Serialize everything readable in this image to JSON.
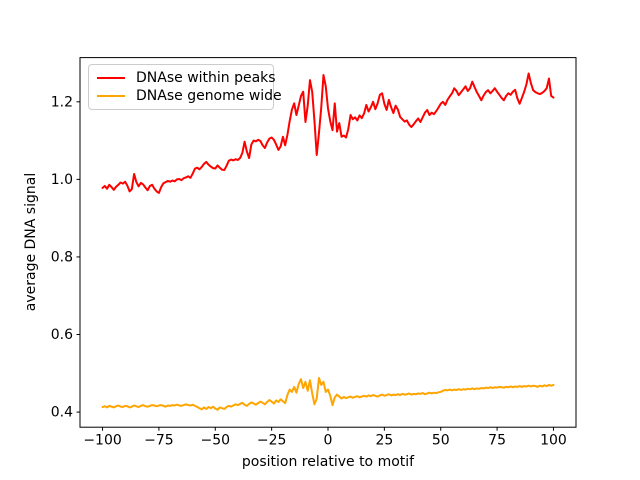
{
  "figure": {
    "background": "#ffffff"
  },
  "chart_data": {
    "type": "line",
    "title": "",
    "xlabel": "position relative to motif",
    "ylabel": "average DNA signal",
    "xlim": [
      -110,
      110
    ],
    "ylim": [
      0.361,
      1.314
    ],
    "grid": false,
    "x_ticks": [
      -100,
      -75,
      -50,
      -25,
      0,
      25,
      50,
      75,
      100
    ],
    "x_tick_labels": [
      "−100",
      "−75",
      "−50",
      "−25",
      "0",
      "25",
      "50",
      "75",
      "100"
    ],
    "y_ticks": [
      0.4,
      0.6,
      0.8,
      1.0,
      1.2
    ],
    "y_tick_labels": [
      "0.4",
      "0.6",
      "0.8",
      "1.0",
      "1.2"
    ],
    "legend": {
      "position": "upper left"
    },
    "x_start": -100,
    "x_step": 1,
    "series": [
      {
        "name": "DNAse within peaks",
        "color": "#ff0000",
        "values": [
          0.978,
          0.983,
          0.976,
          0.986,
          0.98,
          0.973,
          0.981,
          0.986,
          0.992,
          0.989,
          0.994,
          0.984,
          0.969,
          0.975,
          1.014,
          0.993,
          0.982,
          0.991,
          0.987,
          0.979,
          0.972,
          0.983,
          0.986,
          0.976,
          0.969,
          0.965,
          0.98,
          0.99,
          0.993,
          0.996,
          0.994,
          0.997,
          0.995,
          1.0,
          1.001,
          0.998,
          1.003,
          1.005,
          1.008,
          1.004,
          1.015,
          1.028,
          1.03,
          1.026,
          1.032,
          1.04,
          1.045,
          1.038,
          1.033,
          1.029,
          1.028,
          1.036,
          1.03,
          1.025,
          1.024,
          1.035,
          1.048,
          1.051,
          1.049,
          1.052,
          1.05,
          1.055,
          1.068,
          1.097,
          1.072,
          1.055,
          1.09,
          1.1,
          1.098,
          1.102,
          1.099,
          1.088,
          1.081,
          1.095,
          1.105,
          1.108,
          1.102,
          1.09,
          1.076,
          1.085,
          1.11,
          1.088,
          1.115,
          1.15,
          1.18,
          1.196,
          1.166,
          1.19,
          1.215,
          1.226,
          1.148,
          1.19,
          1.256,
          1.225,
          1.15,
          1.063,
          1.12,
          1.185,
          1.269,
          1.24,
          1.183,
          1.15,
          1.127,
          1.196,
          1.123,
          1.145,
          1.11,
          1.113,
          1.108,
          1.13,
          1.166,
          1.155,
          1.16,
          1.152,
          1.165,
          1.158,
          1.17,
          1.192,
          1.175,
          1.186,
          1.2,
          1.181,
          1.196,
          1.218,
          1.222,
          1.195,
          1.179,
          1.205,
          1.186,
          1.171,
          1.19,
          1.18,
          1.161,
          1.155,
          1.149,
          1.152,
          1.141,
          1.135,
          1.142,
          1.15,
          1.157,
          1.148,
          1.16,
          1.172,
          1.179,
          1.166,
          1.172,
          1.168,
          1.176,
          1.185,
          1.195,
          1.2,
          1.192,
          1.205,
          1.214,
          1.222,
          1.235,
          1.228,
          1.217,
          1.225,
          1.232,
          1.24,
          1.228,
          1.235,
          1.252,
          1.238,
          1.225,
          1.215,
          1.204,
          1.216,
          1.225,
          1.23,
          1.222,
          1.228,
          1.235,
          1.226,
          1.218,
          1.21,
          1.204,
          1.215,
          1.222,
          1.218,
          1.226,
          1.231,
          1.209,
          1.195,
          1.21,
          1.226,
          1.245,
          1.273,
          1.248,
          1.23,
          1.225,
          1.222,
          1.22,
          1.223,
          1.228,
          1.235,
          1.26,
          1.215,
          1.211
        ]
      },
      {
        "name": "DNAse genome wide",
        "color": "#ffa500",
        "values": [
          0.413,
          0.415,
          0.412,
          0.416,
          0.414,
          0.412,
          0.415,
          0.417,
          0.414,
          0.413,
          0.416,
          0.415,
          0.412,
          0.414,
          0.417,
          0.415,
          0.413,
          0.416,
          0.418,
          0.415,
          0.414,
          0.416,
          0.418,
          0.417,
          0.415,
          0.417,
          0.418,
          0.416,
          0.414,
          0.417,
          0.416,
          0.418,
          0.417,
          0.419,
          0.417,
          0.416,
          0.418,
          0.42,
          0.418,
          0.417,
          0.419,
          0.416,
          0.413,
          0.41,
          0.407,
          0.412,
          0.408,
          0.413,
          0.41,
          0.414,
          0.409,
          0.406,
          0.412,
          0.41,
          0.408,
          0.413,
          0.416,
          0.414,
          0.417,
          0.42,
          0.418,
          0.421,
          0.424,
          0.419,
          0.416,
          0.421,
          0.425,
          0.422,
          0.419,
          0.423,
          0.427,
          0.424,
          0.42,
          0.426,
          0.431,
          0.427,
          0.422,
          0.43,
          0.426,
          0.433,
          0.428,
          0.423,
          0.444,
          0.458,
          0.452,
          0.465,
          0.45,
          0.472,
          0.485,
          0.462,
          0.478,
          0.455,
          0.482,
          0.448,
          0.42,
          0.435,
          0.488,
          0.47,
          0.478,
          0.452,
          0.458,
          0.442,
          0.418,
          0.438,
          0.445,
          0.44,
          0.435,
          0.439,
          0.436,
          0.438,
          0.44,
          0.437,
          0.439,
          0.441,
          0.438,
          0.44,
          0.442,
          0.44,
          0.443,
          0.441,
          0.444,
          0.442,
          0.44,
          0.443,
          0.445,
          0.442,
          0.444,
          0.446,
          0.443,
          0.445,
          0.444,
          0.446,
          0.444,
          0.447,
          0.445,
          0.446,
          0.448,
          0.445,
          0.447,
          0.446,
          0.448,
          0.447,
          0.449,
          0.446,
          0.448,
          0.45,
          0.448,
          0.45,
          0.449,
          0.451,
          0.452,
          0.455,
          0.457,
          0.456,
          0.458,
          0.456,
          0.458,
          0.457,
          0.459,
          0.457,
          0.459,
          0.458,
          0.46,
          0.459,
          0.461,
          0.459,
          0.461,
          0.46,
          0.462,
          0.461,
          0.463,
          0.462,
          0.464,
          0.462,
          0.464,
          0.463,
          0.465,
          0.464,
          0.463,
          0.465,
          0.464,
          0.466,
          0.464,
          0.466,
          0.465,
          0.467,
          0.465,
          0.467,
          0.466,
          0.468,
          0.466,
          0.468,
          0.467,
          0.465,
          0.468,
          0.466,
          0.469,
          0.467,
          0.47,
          0.468,
          0.47
        ]
      }
    ]
  }
}
